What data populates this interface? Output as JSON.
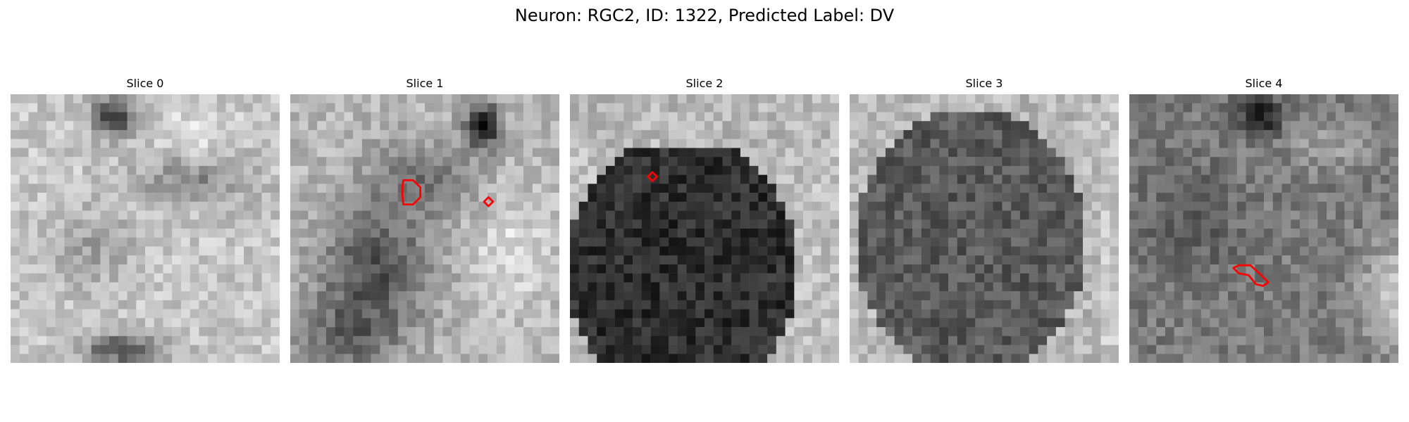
{
  "figure": {
    "title": "Neuron: RGC2, ID: 1322, Predicted Label: DV"
  },
  "colors": {
    "background": "#ffffff",
    "contour": "#ff0000",
    "colormap": "gray"
  },
  "panels": [
    {
      "title": "Slice 0",
      "seed": 11,
      "contours": []
    },
    {
      "title": "Slice 1",
      "seed": 23,
      "contours": []
    },
    {
      "title": "Slice 2",
      "seed": 37,
      "contours": []
    },
    {
      "title": "Slice 3",
      "seed": 41,
      "contours": []
    },
    {
      "title": "Slice 4",
      "seed": 53,
      "contours": []
    }
  ]
}
